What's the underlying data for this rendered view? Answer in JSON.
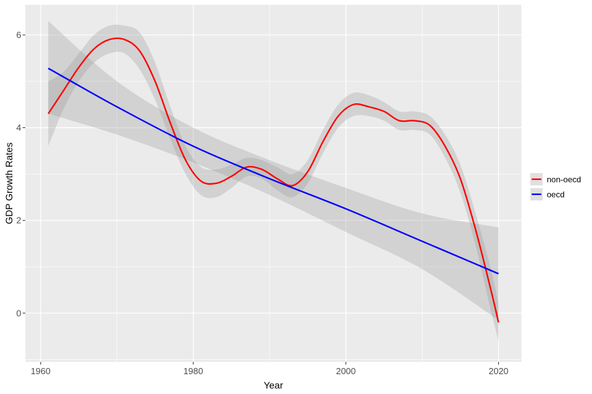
{
  "chart_data": {
    "type": "line",
    "title": "",
    "xlabel": "Year",
    "ylabel": "GDP Growth Rates",
    "xlim": [
      1958,
      2023
    ],
    "ylim": [
      -1.05,
      6.65
    ],
    "x_ticks": [
      1960,
      1980,
      2000,
      2020
    ],
    "y_ticks": [
      0,
      2,
      4,
      6
    ],
    "grid": true,
    "legend_position": "right",
    "series": [
      {
        "name": "non-oecd",
        "color": "#ff0000",
        "x": [
          1961,
          1963,
          1965,
          1967,
          1969,
          1971,
          1973,
          1975,
          1977,
          1979,
          1981,
          1983,
          1985,
          1987,
          1989,
          1991,
          1993,
          1995,
          1997,
          1999,
          2001,
          2003,
          2005,
          2007,
          2009,
          2011,
          2013,
          2015,
          2017,
          2019,
          2020
        ],
        "y": [
          4.3,
          4.8,
          5.3,
          5.7,
          5.9,
          5.9,
          5.65,
          5.0,
          4.1,
          3.3,
          2.85,
          2.8,
          2.95,
          3.15,
          3.1,
          2.9,
          2.75,
          3.05,
          3.7,
          4.25,
          4.5,
          4.45,
          4.35,
          4.15,
          4.15,
          4.05,
          3.6,
          2.9,
          1.8,
          0.5,
          -0.2
        ],
        "ci_lower": [
          3.6,
          4.4,
          5.0,
          5.4,
          5.6,
          5.6,
          5.25,
          4.6,
          3.75,
          3.0,
          2.55,
          2.5,
          2.7,
          2.95,
          2.9,
          2.65,
          2.5,
          2.8,
          3.45,
          4.0,
          4.25,
          4.25,
          4.15,
          3.95,
          3.95,
          3.85,
          3.35,
          2.6,
          1.45,
          0.05,
          -0.6
        ],
        "ci_upper": [
          5.0,
          5.2,
          5.6,
          6.0,
          6.2,
          6.2,
          6.05,
          5.4,
          4.45,
          3.6,
          3.15,
          3.1,
          3.2,
          3.35,
          3.3,
          3.15,
          3.0,
          3.3,
          3.95,
          4.5,
          4.75,
          4.7,
          4.55,
          4.35,
          4.35,
          4.25,
          3.85,
          3.2,
          2.15,
          0.95,
          0.2
        ]
      },
      {
        "name": "oecd",
        "color": "#0000ff",
        "x": [
          1961,
          1970,
          1980,
          1990,
          2000,
          2010,
          2020
        ],
        "y": [
          5.28,
          4.45,
          3.6,
          2.9,
          2.25,
          1.55,
          0.85
        ],
        "ci_lower": [
          4.3,
          3.85,
          3.25,
          2.55,
          1.75,
          0.95,
          -0.15
        ],
        "ci_upper": [
          6.3,
          5.0,
          4.0,
          3.3,
          2.7,
          2.15,
          1.85
        ]
      }
    ]
  }
}
